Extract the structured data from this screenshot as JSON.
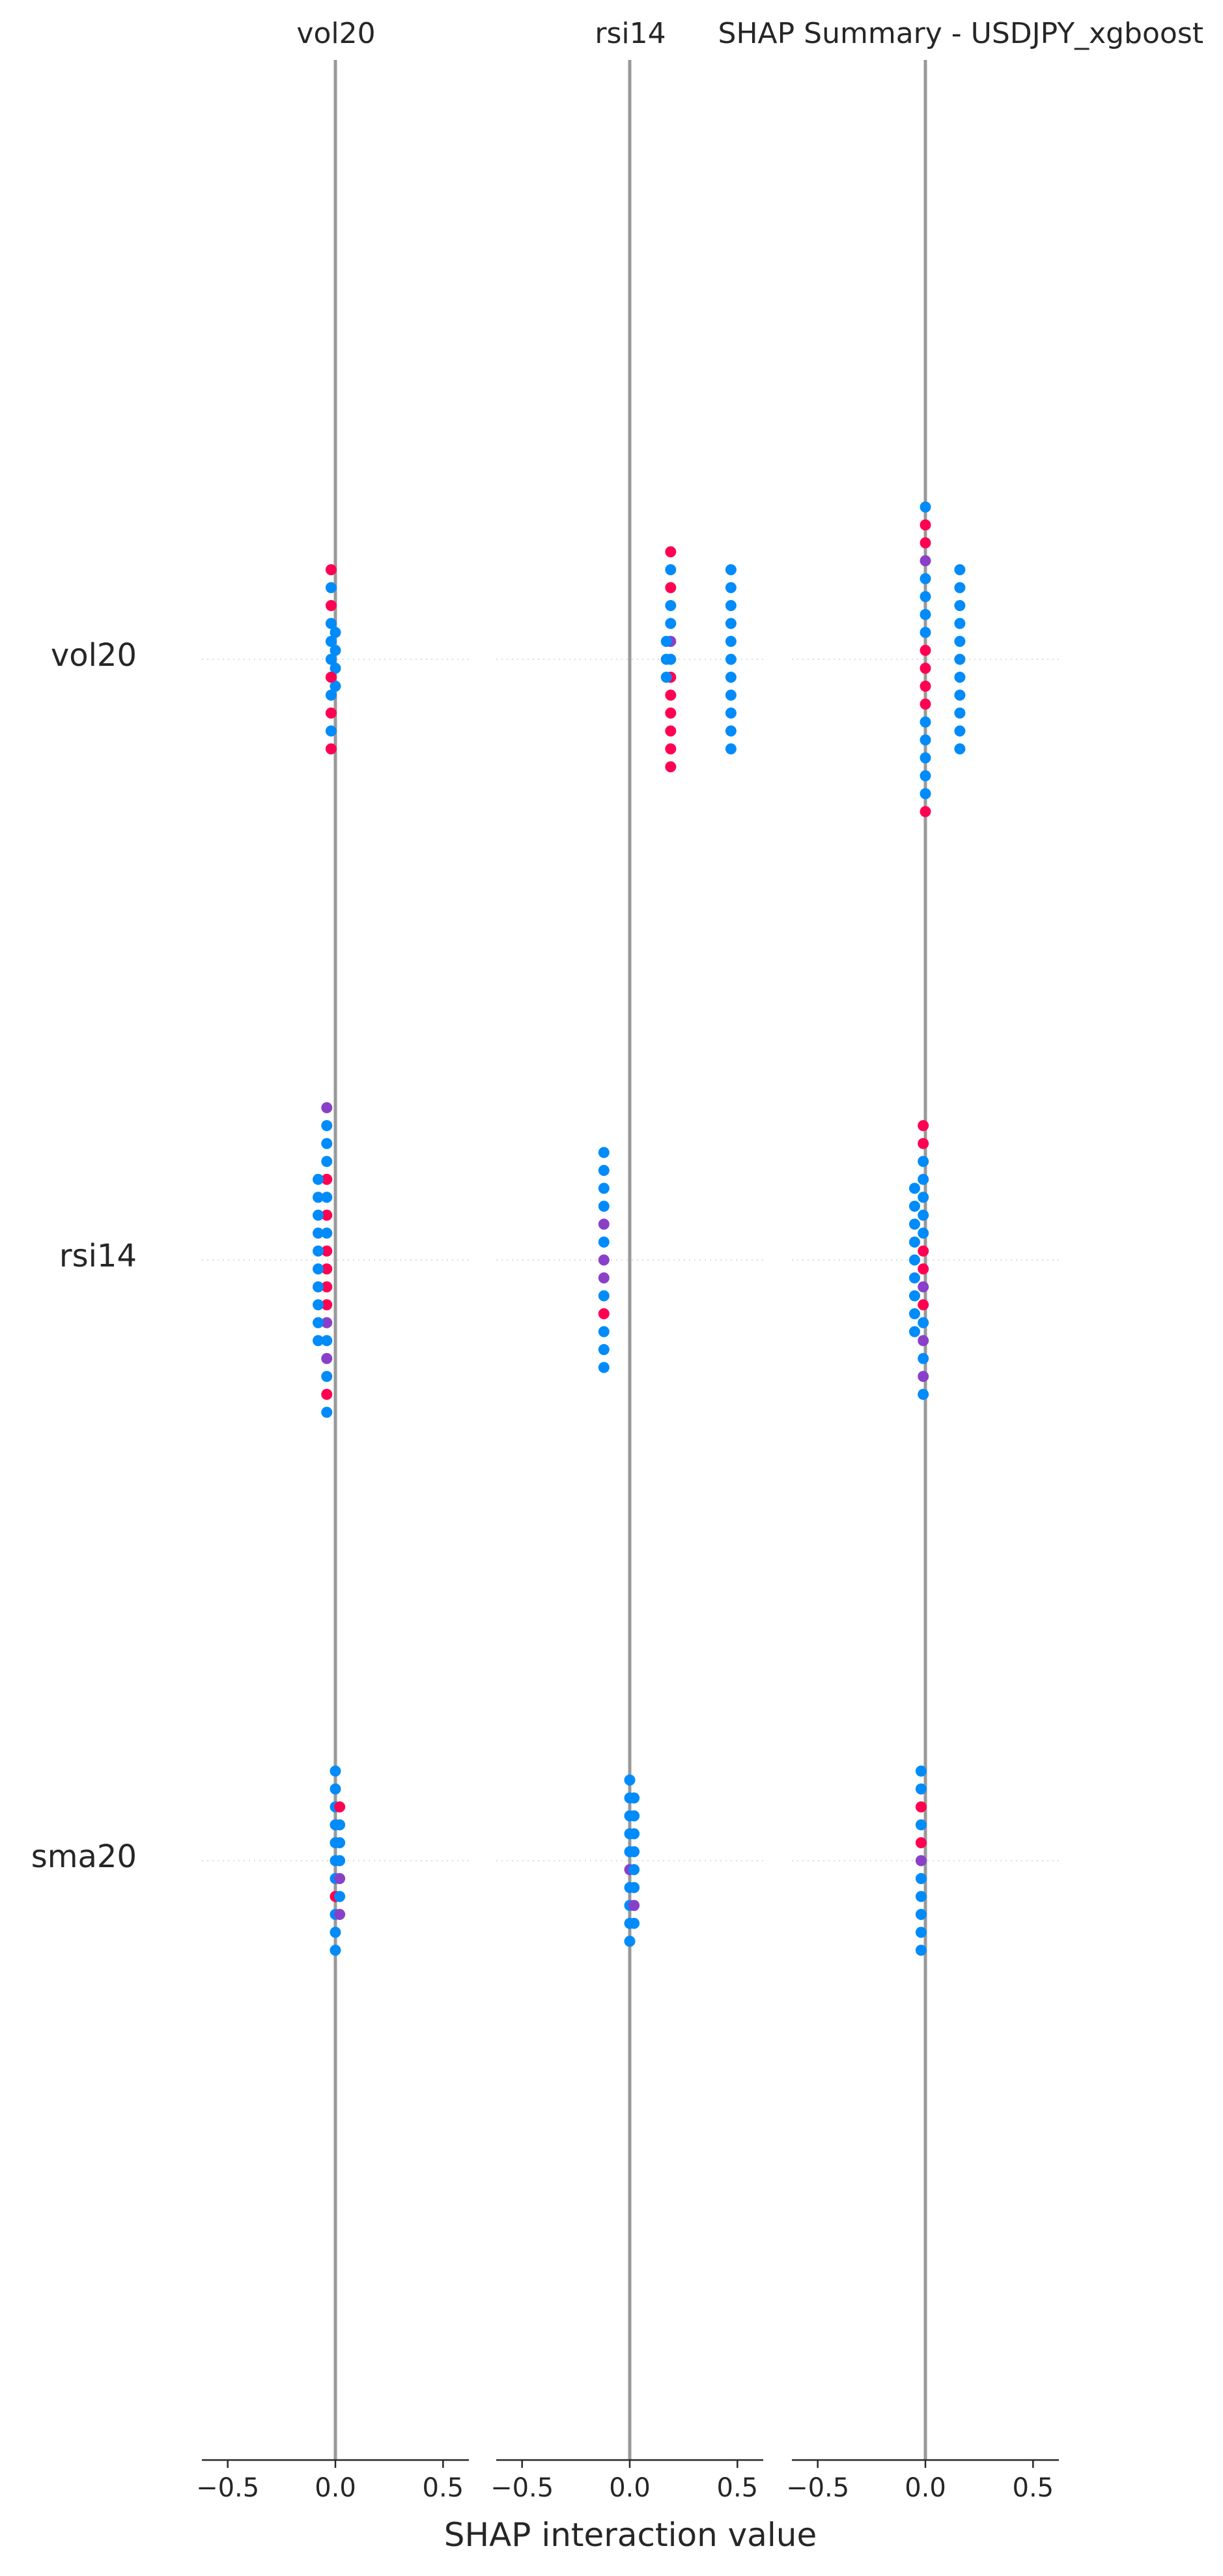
{
  "chart_data": {
    "type": "scatter",
    "title": "SHAP Summary - USDJPY_xgboost",
    "xlabel": "SHAP interaction value",
    "features": [
      "vol20",
      "rsi14",
      "sma20"
    ],
    "xlim": [
      -0.62,
      0.62
    ],
    "xticks": [
      -0.5,
      0.0,
      0.5
    ],
    "xtick_labels": [
      "−0.5",
      "0.0",
      "0.5"
    ],
    "colors": {
      "low": "#008bfb",
      "mid": "#8a3fc8",
      "high": "#ff0052",
      "zero_line": "#999999",
      "grid": "#dddddd",
      "text": "#262626"
    },
    "panels": [
      {
        "header": "vol20",
        "rows": [
          {
            "feature": "vol20",
            "points": [
              {
                "x": 0.0,
                "c": "low"
              },
              {
                "x": 0.0,
                "c": "low"
              },
              {
                "x": -0.02,
                "c": "high"
              },
              {
                "x": -0.02,
                "c": "low"
              },
              {
                "x": -0.02,
                "c": "high"
              },
              {
                "x": -0.02,
                "c": "low"
              },
              {
                "x": -0.02,
                "c": "low"
              },
              {
                "x": -0.02,
                "c": "low"
              },
              {
                "x": -0.02,
                "c": "high"
              },
              {
                "x": -0.02,
                "c": "low"
              },
              {
                "x": -0.02,
                "c": "high"
              },
              {
                "x": -0.02,
                "c": "low"
              },
              {
                "x": -0.02,
                "c": "high"
              },
              {
                "x": 0.0,
                "c": "low"
              },
              {
                "x": 0.0,
                "c": "low"
              }
            ]
          },
          {
            "feature": "rsi14",
            "points": [
              {
                "x": -0.04,
                "c": "mid"
              },
              {
                "x": -0.04,
                "c": "low"
              },
              {
                "x": -0.04,
                "c": "low"
              },
              {
                "x": -0.04,
                "c": "low"
              },
              {
                "x": -0.08,
                "c": "low"
              },
              {
                "x": -0.04,
                "c": "high"
              },
              {
                "x": -0.08,
                "c": "low"
              },
              {
                "x": -0.04,
                "c": "low"
              },
              {
                "x": -0.08,
                "c": "low"
              },
              {
                "x": -0.04,
                "c": "high"
              },
              {
                "x": -0.08,
                "c": "low"
              },
              {
                "x": -0.04,
                "c": "low"
              },
              {
                "x": -0.08,
                "c": "low"
              },
              {
                "x": -0.04,
                "c": "high"
              },
              {
                "x": -0.08,
                "c": "low"
              },
              {
                "x": -0.04,
                "c": "high"
              },
              {
                "x": -0.08,
                "c": "low"
              },
              {
                "x": -0.04,
                "c": "high"
              },
              {
                "x": -0.08,
                "c": "low"
              },
              {
                "x": -0.04,
                "c": "high"
              },
              {
                "x": -0.08,
                "c": "low"
              },
              {
                "x": -0.04,
                "c": "mid"
              },
              {
                "x": -0.08,
                "c": "low"
              },
              {
                "x": -0.04,
                "c": "low"
              },
              {
                "x": -0.04,
                "c": "mid"
              },
              {
                "x": -0.04,
                "c": "low"
              },
              {
                "x": -0.04,
                "c": "high"
              },
              {
                "x": -0.04,
                "c": "low"
              }
            ]
          },
          {
            "feature": "sma20",
            "points": [
              {
                "x": 0.0,
                "c": "low"
              },
              {
                "x": 0.0,
                "c": "low"
              },
              {
                "x": 0.0,
                "c": "low"
              },
              {
                "x": 0.02,
                "c": "high"
              },
              {
                "x": 0.0,
                "c": "low"
              },
              {
                "x": 0.02,
                "c": "low"
              },
              {
                "x": 0.0,
                "c": "low"
              },
              {
                "x": 0.02,
                "c": "low"
              },
              {
                "x": 0.0,
                "c": "low"
              },
              {
                "x": 0.02,
                "c": "low"
              },
              {
                "x": 0.0,
                "c": "low"
              },
              {
                "x": 0.02,
                "c": "mid"
              },
              {
                "x": 0.0,
                "c": "high"
              },
              {
                "x": 0.02,
                "c": "low"
              },
              {
                "x": 0.0,
                "c": "low"
              },
              {
                "x": 0.02,
                "c": "mid"
              },
              {
                "x": 0.0,
                "c": "low"
              },
              {
                "x": 0.0,
                "c": "low"
              }
            ]
          }
        ]
      },
      {
        "header": "rsi14",
        "rows": [
          {
            "feature": "vol20",
            "points": [
              {
                "x": 0.19,
                "c": "high"
              },
              {
                "x": 0.19,
                "c": "low"
              },
              {
                "x": 0.19,
                "c": "high"
              },
              {
                "x": 0.19,
                "c": "low"
              },
              {
                "x": 0.17,
                "c": "low"
              },
              {
                "x": 0.19,
                "c": "low"
              },
              {
                "x": 0.17,
                "c": "low"
              },
              {
                "x": 0.19,
                "c": "mid"
              },
              {
                "x": 0.17,
                "c": "low"
              },
              {
                "x": 0.19,
                "c": "low"
              },
              {
                "x": 0.19,
                "c": "high"
              },
              {
                "x": 0.19,
                "c": "high"
              },
              {
                "x": 0.19,
                "c": "high"
              },
              {
                "x": 0.19,
                "c": "high"
              },
              {
                "x": 0.19,
                "c": "high"
              },
              {
                "x": 0.19,
                "c": "high"
              },
              {
                "x": 0.47,
                "c": "low"
              },
              {
                "x": 0.47,
                "c": "low"
              },
              {
                "x": 0.47,
                "c": "low"
              },
              {
                "x": 0.47,
                "c": "low"
              },
              {
                "x": 0.47,
                "c": "low"
              },
              {
                "x": 0.47,
                "c": "low"
              },
              {
                "x": 0.47,
                "c": "low"
              },
              {
                "x": 0.47,
                "c": "low"
              },
              {
                "x": 0.47,
                "c": "low"
              },
              {
                "x": 0.47,
                "c": "low"
              },
              {
                "x": 0.47,
                "c": "low"
              }
            ]
          },
          {
            "feature": "rsi14",
            "points": [
              {
                "x": -0.12,
                "c": "low"
              },
              {
                "x": -0.12,
                "c": "low"
              },
              {
                "x": -0.12,
                "c": "low"
              },
              {
                "x": -0.12,
                "c": "low"
              },
              {
                "x": -0.12,
                "c": "mid"
              },
              {
                "x": -0.12,
                "c": "low"
              },
              {
                "x": -0.12,
                "c": "mid"
              },
              {
                "x": -0.12,
                "c": "mid"
              },
              {
                "x": -0.12,
                "c": "low"
              },
              {
                "x": -0.12,
                "c": "high"
              },
              {
                "x": -0.12,
                "c": "low"
              },
              {
                "x": -0.12,
                "c": "low"
              },
              {
                "x": -0.12,
                "c": "low"
              }
            ]
          },
          {
            "feature": "sma20",
            "points": [
              {
                "x": 0.0,
                "c": "low"
              },
              {
                "x": 0.02,
                "c": "low"
              },
              {
                "x": 0.0,
                "c": "low"
              },
              {
                "x": 0.02,
                "c": "low"
              },
              {
                "x": 0.0,
                "c": "low"
              },
              {
                "x": 0.02,
                "c": "low"
              },
              {
                "x": 0.0,
                "c": "low"
              },
              {
                "x": 0.02,
                "c": "low"
              },
              {
                "x": 0.0,
                "c": "low"
              },
              {
                "x": 0.02,
                "c": "low"
              },
              {
                "x": 0.0,
                "c": "mid"
              },
              {
                "x": 0.02,
                "c": "low"
              },
              {
                "x": 0.0,
                "c": "low"
              },
              {
                "x": 0.02,
                "c": "mid"
              },
              {
                "x": 0.0,
                "c": "low"
              },
              {
                "x": 0.02,
                "c": "low"
              },
              {
                "x": 0.0,
                "c": "low"
              },
              {
                "x": 0.0,
                "c": "low"
              }
            ]
          }
        ]
      },
      {
        "header": "",
        "rows": [
          {
            "feature": "vol20",
            "points": [
              {
                "x": 0.0,
                "c": "low"
              },
              {
                "x": 0.0,
                "c": "high"
              },
              {
                "x": 0.0,
                "c": "high"
              },
              {
                "x": 0.0,
                "c": "mid"
              },
              {
                "x": 0.0,
                "c": "low"
              },
              {
                "x": 0.0,
                "c": "low"
              },
              {
                "x": 0.0,
                "c": "low"
              },
              {
                "x": 0.0,
                "c": "low"
              },
              {
                "x": 0.0,
                "c": "high"
              },
              {
                "x": 0.0,
                "c": "high"
              },
              {
                "x": 0.0,
                "c": "high"
              },
              {
                "x": 0.0,
                "c": "high"
              },
              {
                "x": 0.0,
                "c": "low"
              },
              {
                "x": 0.0,
                "c": "low"
              },
              {
                "x": 0.0,
                "c": "low"
              },
              {
                "x": 0.0,
                "c": "low"
              },
              {
                "x": 0.0,
                "c": "low"
              },
              {
                "x": 0.0,
                "c": "high"
              },
              {
                "x": 0.16,
                "c": "low"
              },
              {
                "x": 0.16,
                "c": "low"
              },
              {
                "x": 0.16,
                "c": "low"
              },
              {
                "x": 0.16,
                "c": "low"
              },
              {
                "x": 0.16,
                "c": "low"
              },
              {
                "x": 0.16,
                "c": "low"
              },
              {
                "x": 0.16,
                "c": "low"
              },
              {
                "x": 0.16,
                "c": "low"
              },
              {
                "x": 0.16,
                "c": "low"
              },
              {
                "x": 0.16,
                "c": "low"
              },
              {
                "x": 0.16,
                "c": "low"
              }
            ]
          },
          {
            "feature": "rsi14",
            "points": [
              {
                "x": -0.01,
                "c": "high"
              },
              {
                "x": -0.01,
                "c": "high"
              },
              {
                "x": -0.01,
                "c": "low"
              },
              {
                "x": -0.01,
                "c": "low"
              },
              {
                "x": -0.05,
                "c": "low"
              },
              {
                "x": -0.01,
                "c": "low"
              },
              {
                "x": -0.05,
                "c": "low"
              },
              {
                "x": -0.01,
                "c": "low"
              },
              {
                "x": -0.05,
                "c": "low"
              },
              {
                "x": -0.01,
                "c": "low"
              },
              {
                "x": -0.05,
                "c": "low"
              },
              {
                "x": -0.01,
                "c": "high"
              },
              {
                "x": -0.05,
                "c": "low"
              },
              {
                "x": -0.01,
                "c": "high"
              },
              {
                "x": -0.05,
                "c": "low"
              },
              {
                "x": -0.01,
                "c": "mid"
              },
              {
                "x": -0.05,
                "c": "low"
              },
              {
                "x": -0.01,
                "c": "high"
              },
              {
                "x": -0.05,
                "c": "low"
              },
              {
                "x": -0.01,
                "c": "low"
              },
              {
                "x": -0.05,
                "c": "low"
              },
              {
                "x": -0.01,
                "c": "mid"
              },
              {
                "x": -0.01,
                "c": "low"
              },
              {
                "x": -0.01,
                "c": "mid"
              },
              {
                "x": -0.01,
                "c": "low"
              }
            ]
          },
          {
            "feature": "sma20",
            "points": [
              {
                "x": -0.02,
                "c": "low"
              },
              {
                "x": -0.02,
                "c": "low"
              },
              {
                "x": -0.02,
                "c": "high"
              },
              {
                "x": -0.02,
                "c": "low"
              },
              {
                "x": -0.02,
                "c": "high"
              },
              {
                "x": -0.02,
                "c": "mid"
              },
              {
                "x": -0.02,
                "c": "low"
              },
              {
                "x": -0.02,
                "c": "low"
              },
              {
                "x": -0.02,
                "c": "low"
              },
              {
                "x": -0.02,
                "c": "low"
              },
              {
                "x": -0.02,
                "c": "low"
              }
            ]
          }
        ]
      }
    ]
  }
}
